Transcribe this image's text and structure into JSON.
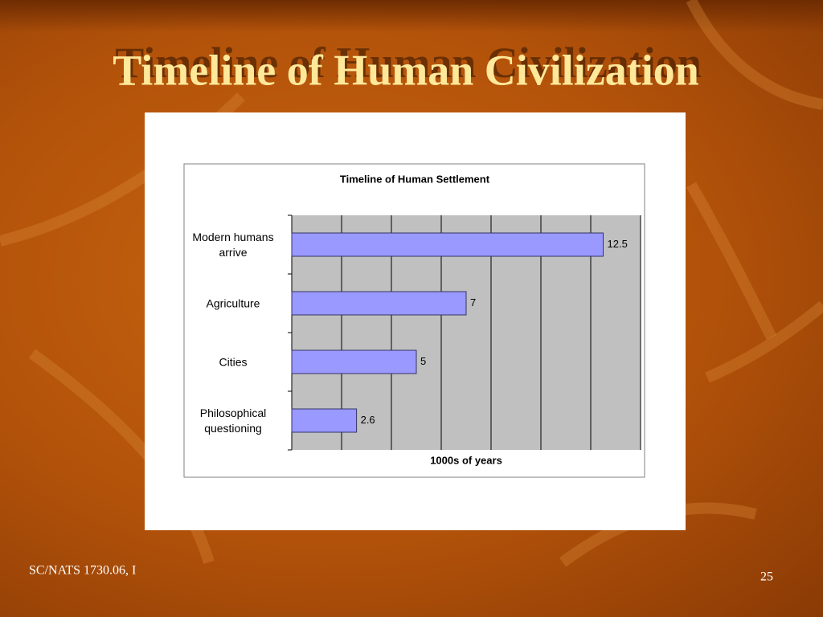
{
  "slide_title": "Timeline of Human Civilization",
  "footer": "SC/NATS 1730.06, I",
  "page_number": "25",
  "chart_data": {
    "type": "hbar",
    "title": "Timeline of Human Settlement",
    "categories": [
      "Modern humans arrive",
      "Agriculture",
      "Cities",
      "Philosophical questioning"
    ],
    "values": [
      12.5,
      7,
      5,
      2.6
    ],
    "color": "#9999ff",
    "xlabel": "1000s of years",
    "xlim": [
      0,
      14
    ],
    "xticks": [
      0,
      2,
      4,
      6,
      8,
      10,
      12,
      14
    ],
    "grid": true
  }
}
